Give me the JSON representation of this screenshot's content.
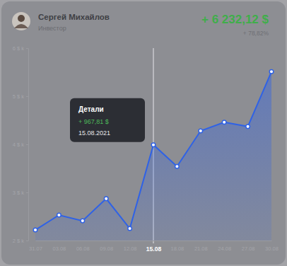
{
  "card": {
    "name": "Сергей Михайлов",
    "role": "Инвестор",
    "total": "+ 6 232,12 $",
    "change": "+ 78,82%"
  },
  "chart_data": {
    "type": "line",
    "categories": [
      "31.07",
      "03.08",
      "06.08",
      "09.08",
      "12.08",
      "15.08",
      "18.08",
      "21.08",
      "24.08",
      "27.08",
      "30.08"
    ],
    "values": [
      2.22,
      2.53,
      2.41,
      2.87,
      2.25,
      3.99,
      3.54,
      4.28,
      4.46,
      4.37,
      5.51
    ],
    "color": "#2f62e6",
    "marker": "circle",
    "grid": false,
    "ylim": [
      2,
      6
    ],
    "yticks": [
      {
        "value": 2,
        "label": "2 $ k"
      },
      {
        "value": 3,
        "label": "3 $ k"
      },
      {
        "value": 4,
        "label": "4 $ k"
      },
      {
        "value": 5,
        "label": "5 $ k"
      },
      {
        "value": 6,
        "label": "6 $ k"
      }
    ],
    "annotations": [
      {
        "x": "15.08",
        "title": "Детали",
        "value_label": "+ 967,81 $",
        "date": "15.08.2021"
      }
    ]
  }
}
